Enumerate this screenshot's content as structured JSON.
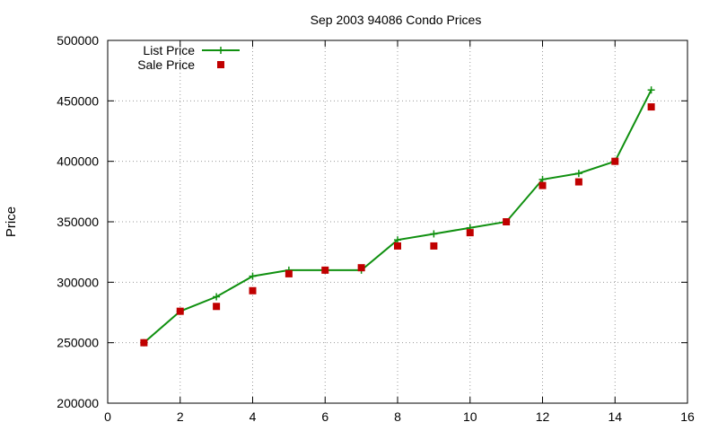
{
  "chart_data": {
    "type": "line",
    "title": "Sep 2003 94086 Condo Prices",
    "xlabel": "",
    "ylabel": "Price",
    "xlim": [
      0,
      16
    ],
    "ylim": [
      200000,
      500000
    ],
    "xticks": [
      0,
      2,
      4,
      6,
      8,
      10,
      12,
      14,
      16
    ],
    "yticks": [
      200000,
      250000,
      300000,
      350000,
      400000,
      450000,
      500000
    ],
    "grid": true,
    "legend_position": "top-left",
    "series": [
      {
        "name": "List Price",
        "style": "line-with-plus-markers",
        "color": "#109010",
        "x": [
          1,
          2,
          3,
          4,
          5,
          6,
          7,
          8,
          9,
          10,
          11,
          12,
          13,
          14,
          15
        ],
        "values": [
          250000,
          276000,
          288000,
          305000,
          310000,
          310000,
          310000,
          335000,
          340000,
          345000,
          350000,
          385000,
          390000,
          400000,
          459000
        ]
      },
      {
        "name": "Sale Price",
        "style": "square-points",
        "color": "#c00000",
        "x": [
          1,
          2,
          3,
          4,
          5,
          6,
          7,
          8,
          9,
          10,
          11,
          12,
          13,
          14,
          15
        ],
        "values": [
          250000,
          276000,
          280000,
          293000,
          307000,
          310000,
          312000,
          330000,
          330000,
          341000,
          350000,
          380000,
          383000,
          400000,
          445000
        ]
      }
    ]
  }
}
